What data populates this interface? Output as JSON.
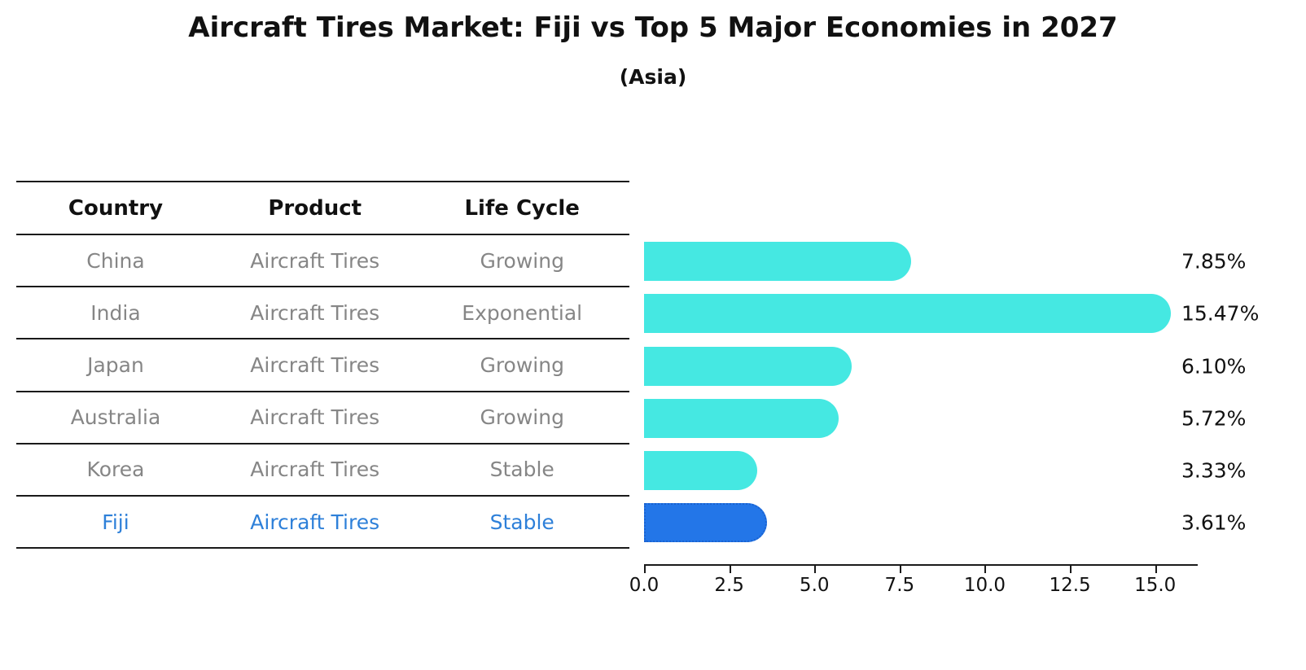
{
  "title": "Aircraft Tires Market: Fiji vs Top 5 Major Economies in 2027",
  "subtitle": "(Asia)",
  "table": {
    "headers": [
      "Country",
      "Product",
      "Life Cycle"
    ],
    "rows": [
      {
        "country": "China",
        "product": "Aircraft Tires",
        "life_cycle": "Growing",
        "highlight": false
      },
      {
        "country": "India",
        "product": "Aircraft Tires",
        "life_cycle": "Exponential",
        "highlight": false
      },
      {
        "country": "Japan",
        "product": "Aircraft Tires",
        "life_cycle": "Growing",
        "highlight": false
      },
      {
        "country": "Australia",
        "product": "Aircraft Tires",
        "life_cycle": "Growing",
        "highlight": false
      },
      {
        "country": "Korea",
        "product": "Aircraft Tires",
        "life_cycle": "Stable",
        "highlight": false
      },
      {
        "country": "Fiji",
        "product": "Aircraft Tires",
        "life_cycle": "Stable",
        "highlight": true
      }
    ]
  },
  "chart_data": {
    "type": "bar",
    "orientation": "horizontal",
    "title": "Aircraft Tires Market: Fiji vs Top 5 Major Economies in 2027",
    "subtitle": "(Asia)",
    "categories": [
      "China",
      "India",
      "Japan",
      "Australia",
      "Korea",
      "Fiji"
    ],
    "values": [
      7.85,
      15.47,
      6.1,
      5.72,
      3.33,
      3.61
    ],
    "value_labels": [
      "7.85%",
      "15.47%",
      "6.10%",
      "5.72%",
      "3.33%",
      "3.61%"
    ],
    "highlight_index": 5,
    "x_ticks": [
      0.0,
      2.5,
      5.0,
      7.5,
      10.0,
      12.5,
      15.0
    ],
    "x_tick_labels": [
      "0.0",
      "2.5",
      "5.0",
      "7.5",
      "10.0",
      "12.5",
      "15.0"
    ],
    "xlim": [
      0,
      16.25
    ],
    "grid": false,
    "legend": false,
    "colors": {
      "bar": "#45e8e2",
      "highlight_bar": "#2376e8",
      "highlight_bar_border": "#1a62d0",
      "highlight_text": "#2e80d9",
      "row_text": "#868686",
      "axis": "#1a1a1a",
      "label_text": "#111111"
    }
  }
}
